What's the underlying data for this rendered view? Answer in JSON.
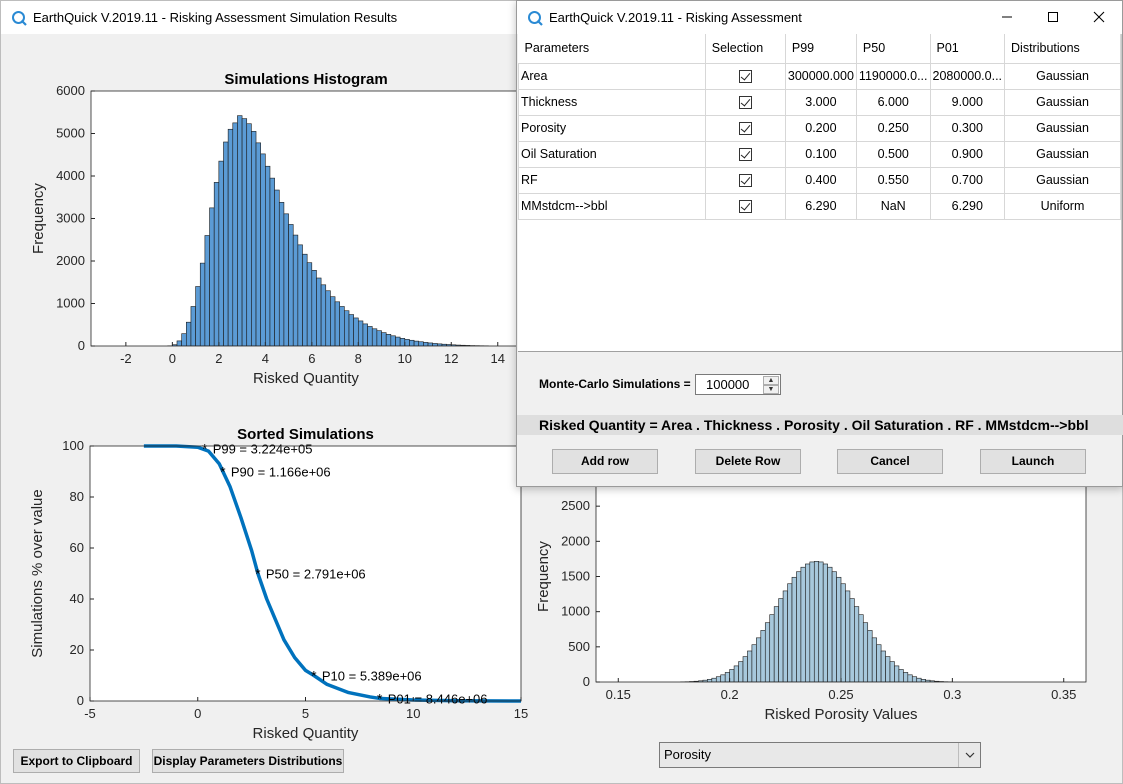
{
  "main_window": {
    "title": "EarthQuick V.2019.11 - Risking Assessment Simulation Results",
    "buttons": {
      "export": "Export to Clipboard",
      "display": "Display Parameters Distributions"
    },
    "param_select": {
      "value": "Porosity"
    }
  },
  "dialog": {
    "title": "EarthQuick V.2019.11 - Risking Assessment",
    "table": {
      "columns": [
        "Parameters",
        "Selection",
        "P99",
        "P50",
        "P01",
        "Distributions"
      ],
      "rows": [
        {
          "name": "Area",
          "selected": true,
          "p99": "300000.000",
          "p50": "1190000.0...",
          "p01": "2080000.0...",
          "dist": "Gaussian"
        },
        {
          "name": "Thickness",
          "selected": true,
          "p99": "3.000",
          "p50": "6.000",
          "p01": "9.000",
          "dist": "Gaussian"
        },
        {
          "name": "Porosity",
          "selected": true,
          "p99": "0.200",
          "p50": "0.250",
          "p01": "0.300",
          "dist": "Gaussian"
        },
        {
          "name": "Oil Saturation",
          "selected": true,
          "p99": "0.100",
          "p50": "0.500",
          "p01": "0.900",
          "dist": "Gaussian"
        },
        {
          "name": "RF",
          "selected": true,
          "p99": "0.400",
          "p50": "0.550",
          "p01": "0.700",
          "dist": "Gaussian"
        },
        {
          "name": "MMstdcm-->bbl",
          "selected": true,
          "p99": "6.290",
          "p50": "NaN",
          "p01": "6.290",
          "dist": "Uniform"
        }
      ]
    },
    "mc_label": "Monte-Carlo Simulations =",
    "mc_value": "100000",
    "formula": "Risked Quantity = Area . Thickness . Porosity . Oil Saturation . RF . MMstdcm-->bbl",
    "buttons": {
      "add": "Add row",
      "delete": "Delete Row",
      "cancel": "Cancel",
      "launch": "Launch"
    }
  },
  "colors": {
    "curve": "#0072bd",
    "hist_fill": "#5b9bd5",
    "porosity_fill": "#a7c8dc",
    "accent": "#2a8ad4"
  },
  "chart_data": [
    {
      "type": "bar",
      "title": "Simulations Histogram",
      "xlabel": "Risked Quantity",
      "ylabel": "Frequency",
      "xlim": [
        -3.5,
        15
      ],
      "ylim": [
        0,
        6000
      ],
      "xticks": [
        "-2",
        "0",
        "2",
        "4",
        "6",
        "8",
        "10",
        "12",
        "14"
      ],
      "yticks": [
        "0",
        "1000",
        "2000",
        "3000",
        "4000",
        "5000",
        "6000"
      ],
      "bin_start": -0.2,
      "bin_width": 0.2,
      "values": [
        5,
        30,
        120,
        290,
        560,
        930,
        1400,
        1950,
        2600,
        3250,
        3850,
        4350,
        4800,
        5100,
        5250,
        5420,
        5350,
        5230,
        5050,
        4780,
        4520,
        4230,
        3950,
        3670,
        3380,
        3110,
        2860,
        2610,
        2380,
        2160,
        1960,
        1780,
        1600,
        1440,
        1300,
        1160,
        1040,
        930,
        830,
        740,
        660,
        590,
        520,
        460,
        405,
        360,
        315,
        275,
        240,
        210,
        180,
        155,
        135,
        115,
        100,
        85,
        72,
        60,
        50,
        42,
        35,
        28,
        22,
        18,
        14,
        10,
        8,
        6,
        4
      ]
    },
    {
      "type": "line",
      "title": "Sorted Simulations",
      "xlabel": "Risked Quantity",
      "ylabel": "Simulations % over value",
      "xlim": [
        -5,
        15
      ],
      "ylim": [
        0,
        100
      ],
      "xticks": [
        "-5",
        "0",
        "5",
        "10",
        "15"
      ],
      "yticks": [
        "0",
        "20",
        "40",
        "60",
        "80",
        "100"
      ],
      "x": [
        -2.5,
        -1.0,
        0.0,
        0.5,
        1.0,
        1.5,
        2.0,
        2.5,
        2.791,
        3.2,
        3.6,
        4.0,
        4.5,
        5.0,
        5.389,
        6.0,
        7.0,
        8.0,
        8.446,
        10.0,
        12.0,
        15.0
      ],
      "y": [
        100,
        100,
        99.5,
        98,
        93,
        84,
        72,
        59,
        50,
        40,
        32,
        24,
        17,
        12,
        10,
        6.5,
        3.3,
        1.6,
        1,
        0.4,
        0.1,
        0
      ],
      "annotations": [
        {
          "label": "P99 = 3.224e+05",
          "x": 0.322,
          "y": 99
        },
        {
          "label": "P90 = 1.166e+06",
          "x": 1.166,
          "y": 90
        },
        {
          "label": "P50 = 2.791e+06",
          "x": 2.791,
          "y": 50
        },
        {
          "label": "P10 = 5.389e+06",
          "x": 5.389,
          "y": 10
        },
        {
          "label": "P01 = 8.446e+06",
          "x": 8.446,
          "y": 1
        }
      ]
    },
    {
      "type": "bar",
      "xlabel": "Risked Porosity Values",
      "ylabel": "Frequency",
      "xlim": [
        0.14,
        0.36
      ],
      "ylim": [
        0,
        3000
      ],
      "xticks": [
        "0.15",
        "0.2",
        "0.25",
        "0.3",
        "0.35"
      ],
      "yticks": [
        "0",
        "500",
        "1000",
        "1500",
        "2000",
        "2500"
      ],
      "bin_start": 0.15,
      "bin_width": 0.002,
      "values": [
        0,
        0,
        0,
        0,
        0,
        0,
        0,
        0,
        0,
        0,
        0,
        0,
        0,
        0,
        2,
        4,
        7,
        11,
        17,
        26,
        38,
        54,
        75,
        102,
        136,
        178,
        229,
        290,
        361,
        441,
        530,
        628,
        733,
        843,
        957,
        1072,
        1186,
        1295,
        1397,
        1489,
        1568,
        1632,
        1678,
        1707,
        1716,
        1707,
        1678,
        1632,
        1568,
        1489,
        1397,
        1295,
        1186,
        1072,
        957,
        843,
        733,
        628,
        530,
        441,
        361,
        290,
        229,
        178,
        136,
        102,
        75,
        54,
        38,
        26,
        17,
        11,
        7,
        4,
        2,
        0,
        0,
        0,
        0,
        0,
        0,
        0,
        0,
        0,
        0,
        0,
        0,
        0,
        0,
        0,
        0,
        0,
        0,
        0,
        0,
        0,
        0,
        0,
        0,
        0
      ]
    }
  ]
}
